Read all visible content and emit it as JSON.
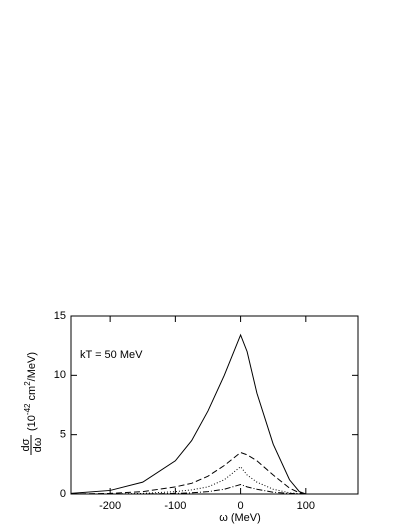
{
  "chart_data": {
    "type": "line",
    "x_label": "ω (MeV)",
    "y_label": {
      "numerator": "dσ",
      "denominator": "dω",
      "unit": [
        "(10",
        "-42",
        " cm",
        "2",
        "/MeV)"
      ]
    },
    "annotation": "kT = 50 MeV",
    "x": [
      -260,
      -200,
      -150,
      -100,
      -75,
      -50,
      -25,
      0,
      10,
      25,
      50,
      75,
      90,
      100
    ],
    "series": [
      {
        "color": "#000000",
        "dash": "none",
        "values": [
          0.05,
          0.3,
          1.0,
          2.8,
          4.5,
          7.0,
          10.0,
          13.4,
          12.0,
          8.5,
          4.2,
          1.2,
          0.2,
          0
        ]
      },
      {
        "color": "#000000",
        "dash": "6,3",
        "values": [
          0,
          0.05,
          0.2,
          0.6,
          0.9,
          1.5,
          2.4,
          3.5,
          3.3,
          2.8,
          1.6,
          0.5,
          0.1,
          0
        ]
      },
      {
        "color": "#000000",
        "dash": "1,2",
        "values": [
          0,
          0,
          0.05,
          0.2,
          0.35,
          0.6,
          1.2,
          2.3,
          1.6,
          1.0,
          0.4,
          0.1,
          0.02,
          0
        ]
      },
      {
        "color": "#000000",
        "dash": "6,2,1,2",
        "values": [
          0,
          0,
          0,
          0.05,
          0.1,
          0.2,
          0.4,
          0.8,
          0.6,
          0.4,
          0.15,
          0.05,
          0.01,
          0
        ]
      }
    ],
    "xlim": [
      -260,
      180
    ],
    "xticks": [
      -200,
      -100,
      0,
      100
    ],
    "ylim": [
      0,
      15
    ],
    "yticks": [
      0,
      5,
      10,
      15
    ]
  }
}
